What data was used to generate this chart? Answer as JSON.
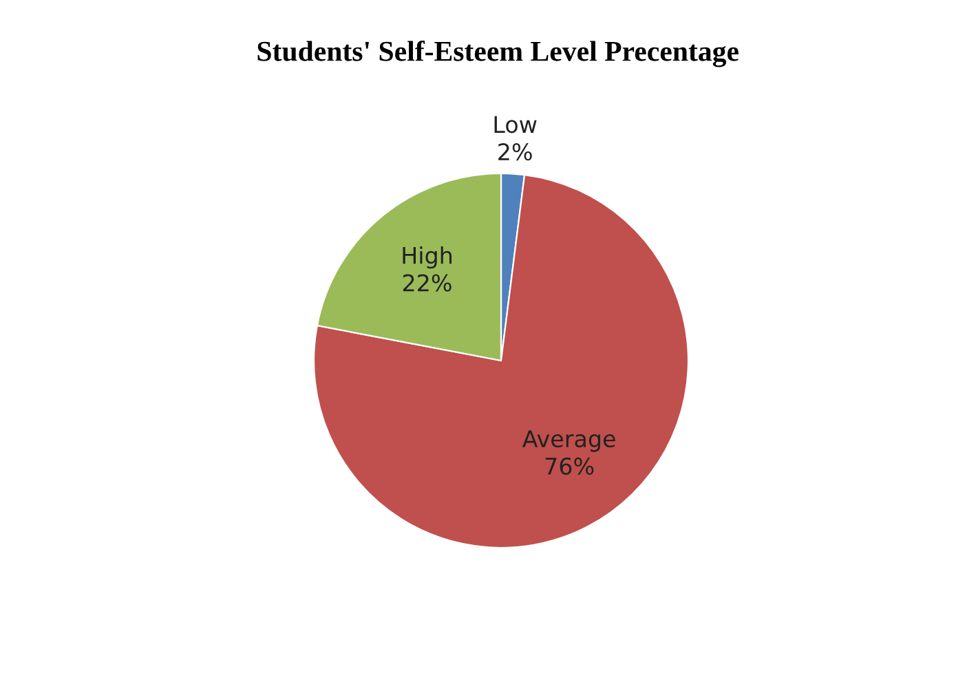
{
  "chart_data": {
    "type": "pie",
    "title": "Students' Self-Esteem Level Precentage",
    "categories": [
      "Low",
      "Average",
      "High"
    ],
    "values": [
      2,
      76,
      22
    ],
    "colors": [
      "#4f81bd",
      "#c0504d",
      "#9bbb59"
    ],
    "value_labels": [
      "2%",
      "76%",
      "22%"
    ]
  }
}
